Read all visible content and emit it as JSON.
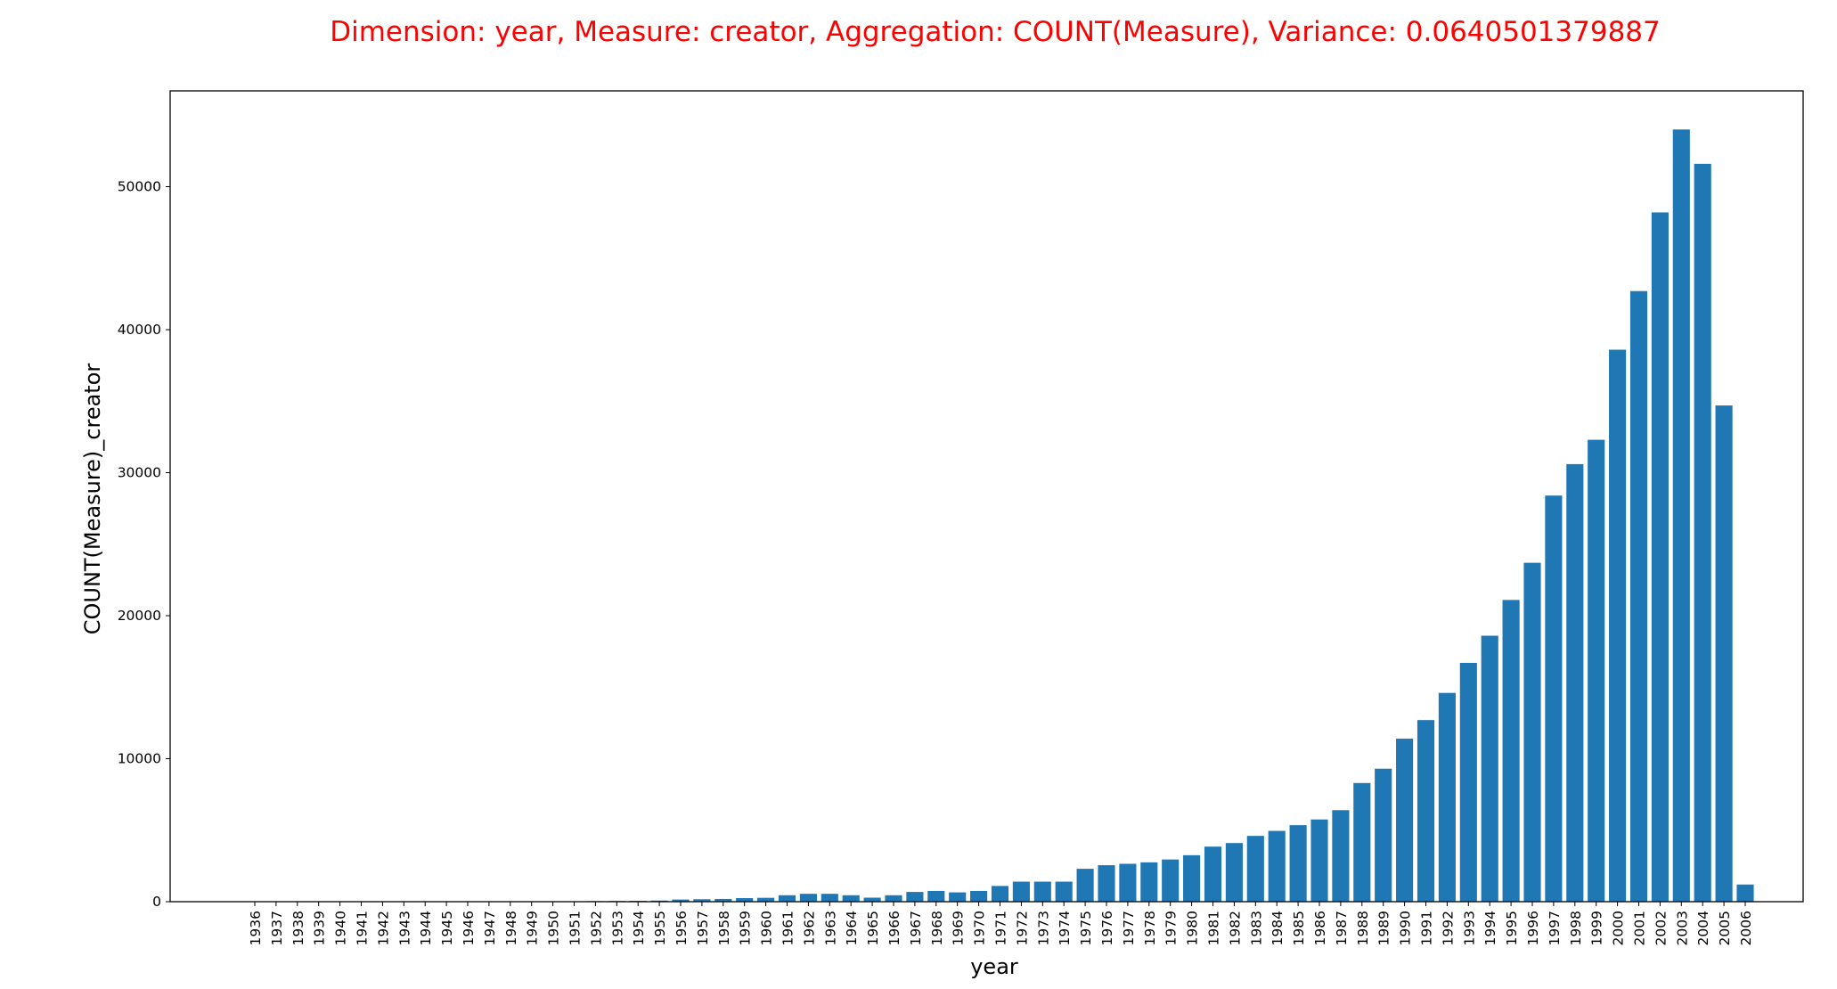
{
  "chart_data": {
    "type": "bar",
    "title": "Dimension: year, Measure: creator, Aggregation: COUNT(Measure), Variance: 0.0640501379887",
    "xlabel": "year",
    "ylabel": "COUNT(Measure)_creator",
    "ylim": [
      0,
      56700
    ],
    "yticks": [
      0,
      10000,
      20000,
      30000,
      40000,
      50000
    ],
    "grid": false,
    "legend": "none",
    "categories": [
      "1936",
      "1937",
      "1938",
      "1939",
      "1940",
      "1941",
      "1942",
      "1943",
      "1944",
      "1945",
      "1946",
      "1947",
      "1948",
      "1949",
      "1950",
      "1951",
      "1952",
      "1953",
      "1954",
      "1955",
      "1956",
      "1957",
      "1958",
      "1959",
      "1960",
      "1961",
      "1962",
      "1963",
      "1964",
      "1965",
      "1966",
      "1967",
      "1968",
      "1969",
      "1970",
      "1971",
      "1972",
      "1973",
      "1974",
      "1975",
      "1976",
      "1977",
      "1978",
      "1979",
      "1980",
      "1981",
      "1982",
      "1983",
      "1984",
      "1985",
      "1986",
      "1987",
      "1988",
      "1989",
      "1990",
      "1991",
      "1992",
      "1993",
      "1994",
      "1995",
      "1996",
      "1997",
      "1998",
      "1999",
      "2000",
      "2001",
      "2002",
      "2003",
      "2004",
      "2005",
      "2006"
    ],
    "values": [
      5,
      5,
      5,
      5,
      5,
      5,
      5,
      10,
      10,
      10,
      10,
      15,
      20,
      20,
      25,
      30,
      40,
      50,
      60,
      80,
      150,
      170,
      190,
      250,
      270,
      450,
      550,
      550,
      450,
      280,
      450,
      680,
      750,
      650,
      750,
      1100,
      1400,
      1400,
      1400,
      2300,
      2550,
      2650,
      2750,
      2950,
      3250,
      3850,
      4100,
      4600,
      4950,
      5350,
      5750,
      6400,
      8300,
      9300,
      11400,
      12700,
      14600,
      16700,
      18600,
      21100,
      23700,
      28400,
      30600,
      32300,
      38600,
      42700,
      48200,
      54000,
      51600,
      34700,
      1200
    ]
  },
  "colors": {
    "bar": "#1f77b4",
    "title": "#ff0000",
    "axis": "#000000"
  }
}
